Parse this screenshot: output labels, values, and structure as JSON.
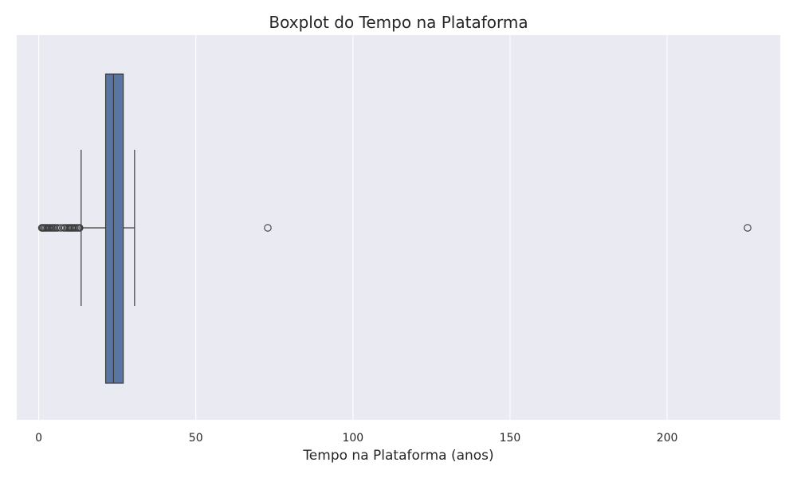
{
  "chart_data": {
    "type": "boxplot",
    "orientation": "horizontal",
    "title": "Boxplot do Tempo na Plataforma",
    "xlabel": "Tempo na Plataforma (anos)",
    "xlim": [
      -7,
      236
    ],
    "xticks": [
      0,
      50,
      100,
      150,
      200
    ],
    "xtick_labels": [
      "0",
      "50",
      "100",
      "150",
      "200"
    ],
    "grid": true,
    "box": {
      "whisker_low": 13.5,
      "q1": 21.3,
      "median": 23.8,
      "q3": 26.9,
      "whisker_high": 30.5
    },
    "outliers": [
      1.0,
      1.3,
      1.6,
      2.0,
      2.4,
      2.8,
      3.3,
      3.7,
      4.2,
      4.6,
      5.0,
      5.5,
      6.0,
      7.0,
      8.0,
      8.4,
      9.0,
      9.4,
      9.8,
      10.2,
      10.6,
      11.0,
      11.4,
      11.8,
      12.3,
      12.8,
      13.0,
      72.9,
      225.6
    ],
    "colors": {
      "background": "#eaeaf2",
      "grid": "#ffffff",
      "box_fill": "#5975a4",
      "line": "#3c3c3c",
      "text": "#262626"
    }
  }
}
